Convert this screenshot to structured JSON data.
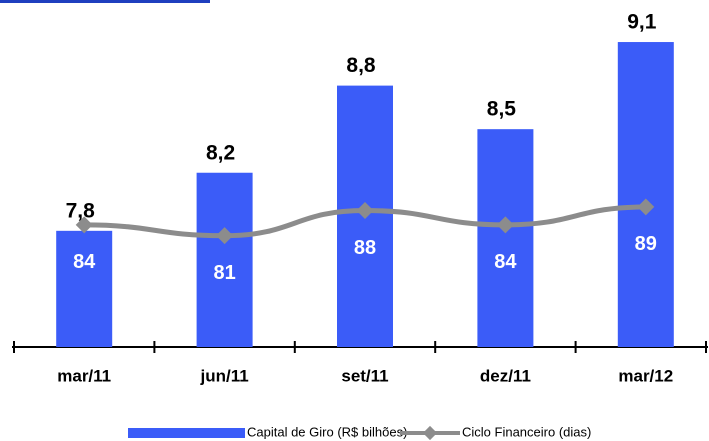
{
  "chart_data": {
    "type": "bar",
    "categories": [
      "mar/11",
      "jun/11",
      "set/11",
      "dez/11",
      "mar/12"
    ],
    "series": [
      {
        "name": "Capital de Giro (R$ bilhões)",
        "type": "bar",
        "color": "#3b5cf8",
        "values": [
          7.8,
          8.2,
          8.8,
          8.5,
          9.1
        ],
        "value_labels": [
          "7,8",
          "8,2",
          "8,8",
          "8,5",
          "9,1"
        ]
      },
      {
        "name": "Ciclo Financeiro (dias)",
        "type": "line",
        "axis": "y2",
        "color": "#8c8c8c",
        "values": [
          84,
          81,
          88,
          84,
          89
        ]
      }
    ],
    "ylim": [
      7.0,
      9.3
    ],
    "y2lim": [
      50,
      143
    ],
    "legend": "bottom"
  }
}
